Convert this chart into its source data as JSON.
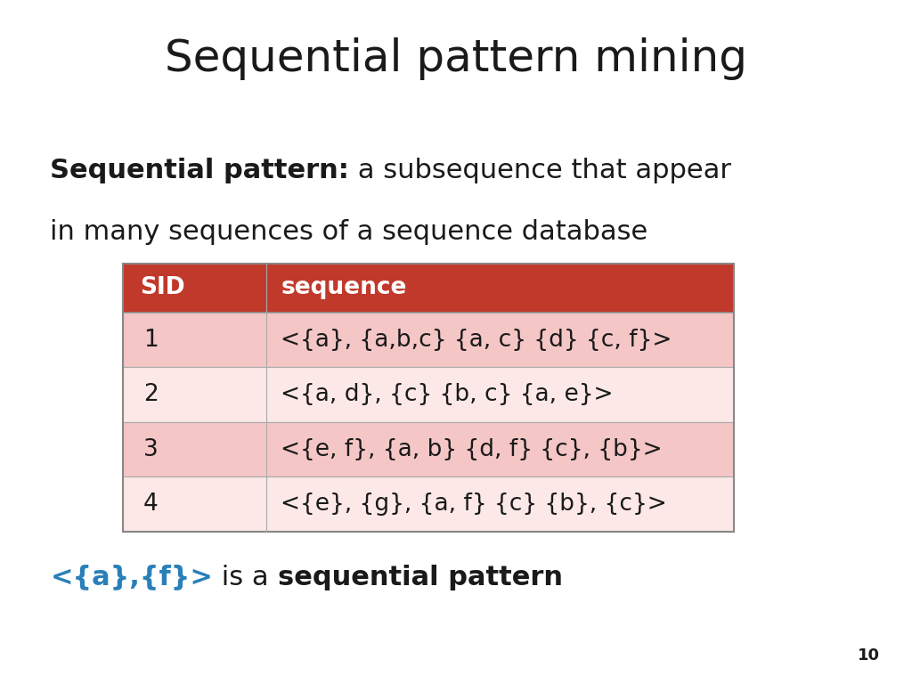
{
  "title": "Sequential pattern mining",
  "title_fontsize": 36,
  "title_color": "#1a1a1a",
  "background_color": "#ffffff",
  "definition_bold": "Sequential pattern:",
  "line1_normal": " a subsequence that appear",
  "line2_normal": "in many sequences of a sequence database",
  "definition_fontsize": 22,
  "table_header": [
    "SID",
    "sequence"
  ],
  "table_rows": [
    [
      "1",
      "<{a}, {a,b,c} {a, c} {d} {c, f}>"
    ],
    [
      "2",
      "<{a, d}, {c} {b, c} {a, e}>"
    ],
    [
      "3",
      "<{e, f}, {a, b} {d, f} {c}, {b}>"
    ],
    [
      "4",
      "<{e}, {g}, {a, f} {c} {b}, {c}>"
    ]
  ],
  "header_bg": "#c0392b",
  "row_colors": [
    "#f5c6c6",
    "#fde8e8",
    "#f5c6c6",
    "#fde8e8"
  ],
  "table_text_color": "#1a1a1a",
  "header_text_color": "#ffffff",
  "table_fontsize": 19,
  "footer_blue_text": "<{a},{f}>",
  "footer_normal_text": " is a ",
  "footer_bold_text": "sequential pattern",
  "footer_fontsize": 22,
  "footer_color_blue": "#2980b9",
  "footer_color_black": "#1a1a1a",
  "page_number": "10"
}
